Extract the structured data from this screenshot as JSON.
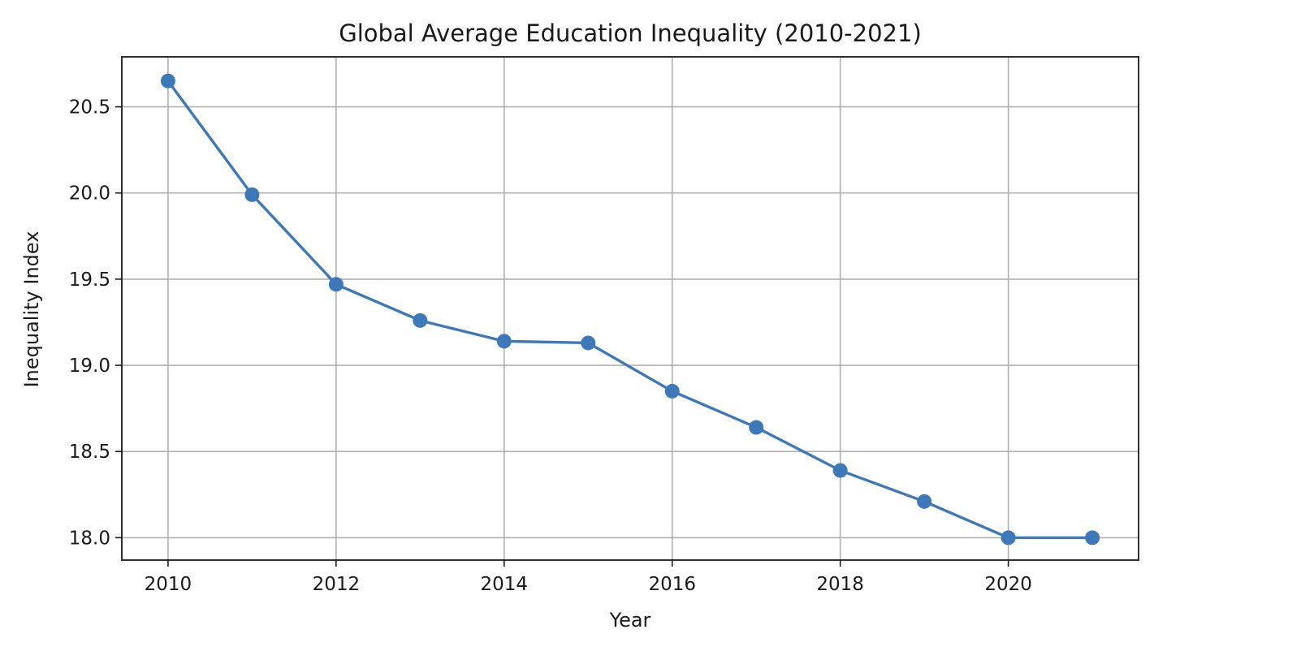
{
  "chart_data": {
    "type": "line",
    "title": "Global Average Education Inequality (2010-2021)",
    "xlabel": "Year",
    "ylabel": "Inequality Index",
    "x": [
      2010,
      2011,
      2012,
      2013,
      2014,
      2015,
      2016,
      2017,
      2018,
      2019,
      2020,
      2021
    ],
    "series": [
      {
        "values": [
          20.65,
          19.99,
          19.47,
          19.26,
          19.14,
          19.13,
          18.85,
          18.64,
          18.39,
          18.21,
          18.0,
          18.0
        ]
      }
    ],
    "xlim": [
      2009.45,
      2021.55
    ],
    "ylim": [
      17.87,
      20.79
    ],
    "xticks": [
      "2010",
      "2012",
      "2014",
      "2016",
      "2018",
      "2020"
    ],
    "xtick_values": [
      2010,
      2012,
      2014,
      2016,
      2018,
      2020
    ],
    "yticks": [
      "18.0",
      "18.5",
      "19.0",
      "19.5",
      "20.0",
      "20.5"
    ],
    "ytick_values": [
      18.0,
      18.5,
      19.0,
      19.5,
      20.0,
      20.5
    ],
    "grid": true,
    "line_color": "#3d79b9",
    "marker": "circle"
  }
}
